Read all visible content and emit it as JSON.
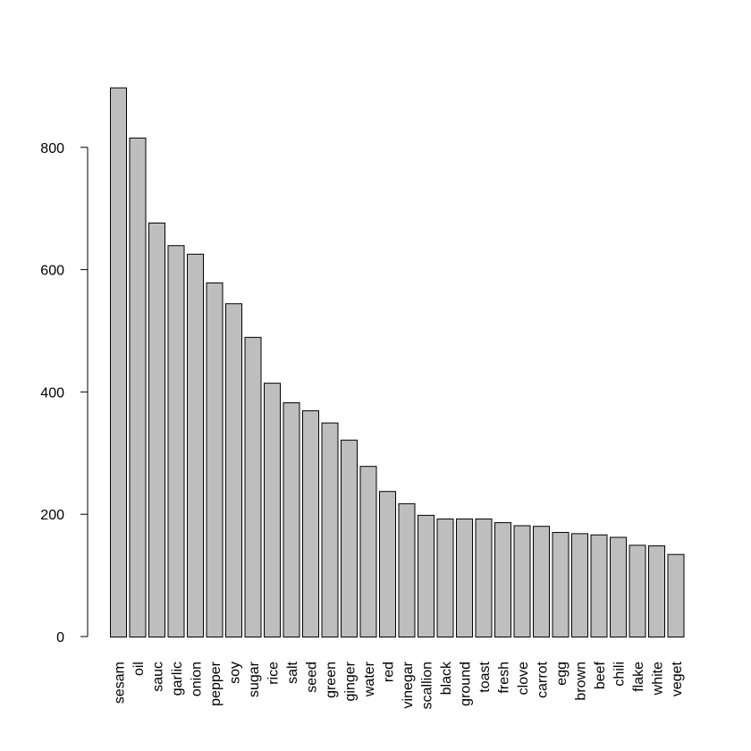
{
  "chart_data": {
    "type": "bar",
    "title": "",
    "xlabel": "",
    "ylabel": "",
    "categories": [
      "sesam",
      "oil",
      "sauc",
      "garlic",
      "onion",
      "pepper",
      "soy",
      "sugar",
      "rice",
      "salt",
      "seed",
      "green",
      "ginger",
      "water",
      "red",
      "vinegar",
      "scallion",
      "black",
      "ground",
      "toast",
      "fresh",
      "clove",
      "carrot",
      "egg",
      "brown",
      "beef",
      "chili",
      "flake",
      "white",
      "veget"
    ],
    "values": [
      898,
      816,
      677,
      640,
      626,
      579,
      545,
      490,
      415,
      383,
      370,
      350,
      322,
      279,
      238,
      218,
      199,
      193,
      193,
      193,
      187,
      182,
      181,
      171,
      169,
      167,
      163,
      150,
      149,
      135
    ],
    "yticks": [
      0,
      200,
      400,
      600,
      800
    ],
    "ylim": [
      0,
      898
    ],
    "grid": false,
    "bar_color": "#bebebe",
    "bar_border_color": "#000000"
  }
}
